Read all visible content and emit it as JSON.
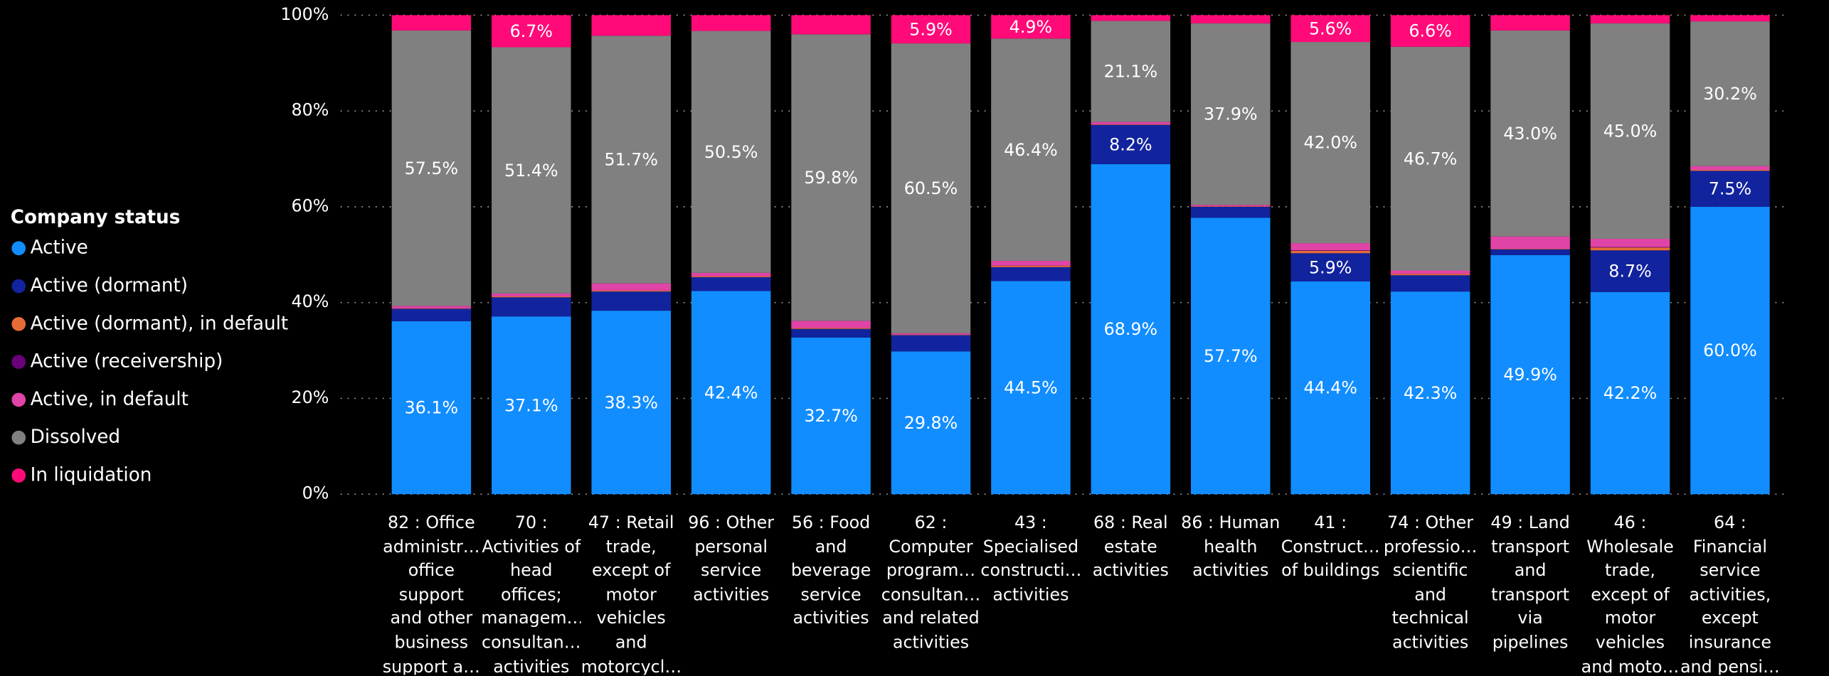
{
  "chart_data": {
    "type": "stacked_bar_100",
    "legend_title": "Company status",
    "legend_position": "left",
    "grid": true,
    "categories": [
      "82 : Office administr… office support and other business support a…",
      "70 : Activities of head offices; managem… consultan… activities",
      "47 : Retail trade, except of motor vehicles and motorcycl…",
      "96 : Other personal service activities",
      "56 : Food and beverage service activities",
      "62 : Computer program… consultan… and related activities",
      "43 : Specialised constructi… activities",
      "68 : Real estate activities",
      "86 : Human health activities",
      "41 : Construct… of buildings",
      "74 : Other professio… scientific and technical activities",
      "49 : Land transport and transport via pipelines",
      "46 : Wholesale trade, except of motor vehicles and moto…",
      "64 : Financial service activities, except insurance and pensi…"
    ],
    "series": [
      {
        "name": "Active",
        "color": "#118dff",
        "values": [
          36.1,
          37.1,
          38.3,
          42.4,
          32.7,
          29.8,
          44.5,
          68.9,
          57.7,
          44.4,
          42.3,
          49.9,
          42.2,
          60.0
        ],
        "value_labels": [
          "36.1%",
          "37.1%",
          "38.3%",
          "42.4%",
          "32.7%",
          "29.8%",
          "44.5%",
          "68.9%",
          "57.7%",
          "44.4%",
          "42.3%",
          "49.9%",
          "42.2%",
          "60.0%"
        ]
      },
      {
        "name": "Active (dormant)",
        "color": "#12239e",
        "values": [
          2.6,
          4.0,
          4.0,
          2.9,
          1.8,
          3.4,
          2.9,
          8.2,
          2.3,
          5.9,
          3.4,
          1.2,
          8.7,
          7.5
        ],
        "value_labels": [
          null,
          null,
          null,
          null,
          null,
          null,
          null,
          "8.2%",
          null,
          "5.9%",
          null,
          null,
          "8.7%",
          "7.5%"
        ]
      },
      {
        "name": "Active (dormant), in default",
        "color": "#e66c37",
        "values": [
          0.1,
          0.2,
          0.2,
          0.2,
          0.2,
          0.1,
          0.3,
          0.1,
          0.1,
          0.5,
          0.3,
          0.1,
          0.6,
          0.2
        ]
      },
      {
        "name": "Active (receivership)",
        "color": "#6b007b",
        "values": [
          0,
          0,
          0,
          0,
          0,
          0,
          0,
          0,
          0,
          0.1,
          0,
          0,
          0.1,
          0
        ]
      },
      {
        "name": "Active, in default",
        "color": "#e044a7",
        "values": [
          0.5,
          0.6,
          1.5,
          0.7,
          1.5,
          0.3,
          1.0,
          0.5,
          0.3,
          1.5,
          0.7,
          2.6,
          1.7,
          0.8
        ]
      },
      {
        "name": "Dissolved",
        "color": "#808080",
        "values": [
          57.5,
          51.4,
          51.7,
          50.5,
          59.8,
          60.5,
          46.4,
          21.1,
          37.9,
          42.0,
          46.7,
          43.0,
          45.0,
          30.2
        ],
        "value_labels": [
          "57.5%",
          "51.4%",
          "51.7%",
          "50.5%",
          "59.8%",
          "60.5%",
          "46.4%",
          "21.1%",
          "37.9%",
          "42.0%",
          "46.7%",
          "43.0%",
          "45.0%",
          "30.2%"
        ]
      },
      {
        "name": "In liquidation",
        "color": "#ff0a78",
        "values": [
          3.2,
          6.7,
          4.3,
          3.3,
          4.0,
          5.9,
          4.9,
          1.2,
          1.7,
          5.6,
          6.6,
          3.2,
          1.7,
          1.3
        ],
        "value_labels": [
          null,
          "6.7%",
          null,
          null,
          null,
          "5.9%",
          "4.9%",
          null,
          null,
          "5.6%",
          "6.6%",
          null,
          null,
          null
        ]
      }
    ],
    "ylim": [
      0,
      100
    ],
    "yticks": [
      {
        "value": 0,
        "label": "0%"
      },
      {
        "value": 20,
        "label": "20%"
      },
      {
        "value": 40,
        "label": "40%"
      },
      {
        "value": 60,
        "label": "60%"
      },
      {
        "value": 80,
        "label": "80%"
      },
      {
        "value": 100,
        "label": "100%"
      }
    ]
  }
}
